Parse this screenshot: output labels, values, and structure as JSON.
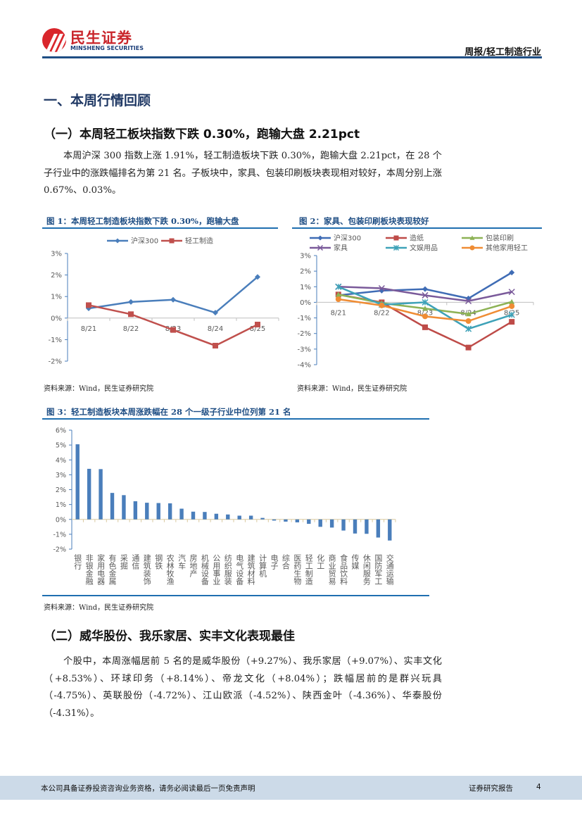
{
  "header": {
    "logo_cn": "民生证券",
    "logo_en": "MINSHENG SECURITIES",
    "report_type": "周报/轻工制造行业"
  },
  "section1": {
    "title": "一、本周行情回顾",
    "subtitle": "（一）本周轻工板块指数下跌 0.30%，跑输大盘 2.21pct",
    "paragraph": "本周沪深 300 指数上涨 1.91%，轻工制造板块下跌 0.30%，跑输大盘 2.21pct，在 28 个子行业中的涨跌幅排名为第 21 名。子板块中，家具、包装印刷板块表现相对较好，本周分别上涨 0.67%、0.03%。"
  },
  "figures": {
    "fig1_title": "图 1：本周轻工制造板块指数下跌 0.30%，跑输大盘",
    "fig1_source": "资料来源：Wind，民生证券研究院",
    "fig2_title": "图 2：家具、包装印刷板块表现较好",
    "fig2_source": "资料来源：Wind，民生证券研究院",
    "fig3_title": "图 3：轻工制造板块本周涨跌幅在 28 个一级子行业中位列第 21 名",
    "fig3_source": "资料来源：Wind，民生证券研究院"
  },
  "chart_data": [
    {
      "type": "line",
      "categories": [
        "8/21",
        "8/22",
        "8/23",
        "8/24",
        "8/25"
      ],
      "ylim": [
        -2,
        3
      ],
      "yticks": [
        "-2%",
        "-1%",
        "0%",
        "1%",
        "2%",
        "3%"
      ],
      "legend": "top",
      "series": [
        {
          "name": "沪深300",
          "color": "#4a7ebb",
          "marker": "diamond",
          "values": [
            0.45,
            0.75,
            0.85,
            0.25,
            1.91
          ]
        },
        {
          "name": "轻工制造",
          "color": "#c0504d",
          "marker": "square",
          "values": [
            0.6,
            0.18,
            -0.55,
            -1.28,
            -0.3
          ]
        }
      ]
    },
    {
      "type": "line",
      "categories": [
        "8/21",
        "8/22",
        "8/23",
        "8/24",
        "8/25"
      ],
      "ylim": [
        -4,
        3
      ],
      "yticks": [
        "-4%",
        "-3%",
        "-2%",
        "-1%",
        "0%",
        "1%",
        "2%",
        "3%"
      ],
      "legend": "top",
      "series": [
        {
          "name": "沪深300",
          "color": "#3f6cb5",
          "marker": "diamond",
          "values": [
            0.45,
            0.75,
            0.85,
            0.25,
            1.91
          ]
        },
        {
          "name": "造纸",
          "color": "#be4b48",
          "marker": "square",
          "values": [
            0.5,
            0.0,
            -1.6,
            -2.9,
            -1.25
          ]
        },
        {
          "name": "包装印刷",
          "color": "#8db255",
          "marker": "triangle",
          "values": [
            0.5,
            -0.05,
            -0.4,
            -0.75,
            0.03
          ]
        },
        {
          "name": "家具",
          "color": "#7a5a9a",
          "marker": "x",
          "values": [
            1.0,
            0.9,
            0.45,
            0.08,
            0.67
          ]
        },
        {
          "name": "文娱用品",
          "color": "#3ea2b8",
          "marker": "star",
          "values": [
            1.0,
            -0.15,
            0.0,
            -1.7,
            -0.8
          ]
        },
        {
          "name": "其他家用轻工",
          "color": "#ef8c34",
          "marker": "circle",
          "values": [
            0.2,
            -0.2,
            -0.9,
            -1.2,
            -0.25
          ]
        }
      ]
    },
    {
      "type": "bar",
      "ylim": [
        -2,
        6
      ],
      "yticks": [
        "-2%",
        "-1%",
        "0%",
        "1%",
        "2%",
        "3%",
        "4%",
        "5%",
        "6%"
      ],
      "color": "#4a7ebb",
      "categories": [
        "银行",
        "非银金融",
        "家用电器",
        "有色金属",
        "采掘",
        "通信",
        "建筑装饰",
        "钢铁",
        "农林牧渔",
        "汽车",
        "房地产",
        "机械设备",
        "公用事业",
        "纺织服装",
        "电气设备",
        "建筑材料",
        "计算机",
        "电子",
        "综合",
        "医药生物",
        "轻工制造",
        "化工",
        "商业贸易",
        "食品饮料",
        "传媒",
        "休闲服务",
        "国防军工",
        "交通运输"
      ],
      "values": [
        5.05,
        3.4,
        3.38,
        1.78,
        1.63,
        1.22,
        1.12,
        1.1,
        1.08,
        0.72,
        0.52,
        0.5,
        0.38,
        0.33,
        0.25,
        0.25,
        0.1,
        -0.08,
        -0.15,
        -0.2,
        -0.3,
        -0.5,
        -0.55,
        -0.75,
        -0.95,
        -0.97,
        -1.22,
        -1.42
      ]
    }
  ],
  "section2": {
    "subtitle": "（二）威华股份、我乐家居、实丰文化表现最佳",
    "paragraph": "个股中，本周涨幅居前 5 名的是威华股份（+9.27%）、我乐家居（+9.07%）、实丰文化（+8.53%）、环球印务（+8.14%）、帝龙文化（+8.04%）；跌幅居前的是群兴玩具（-4.75%）、英联股份（-4.72%）、江山欧派（-4.52%）、陕西金叶（-4.36%）、华泰股份（-4.31%）。"
  },
  "footer": {
    "disclaimer": "本公司具备证券投资咨询业务资格，请务必阅读最后一页免责声明",
    "label": "证券研究报告",
    "page": "4"
  }
}
